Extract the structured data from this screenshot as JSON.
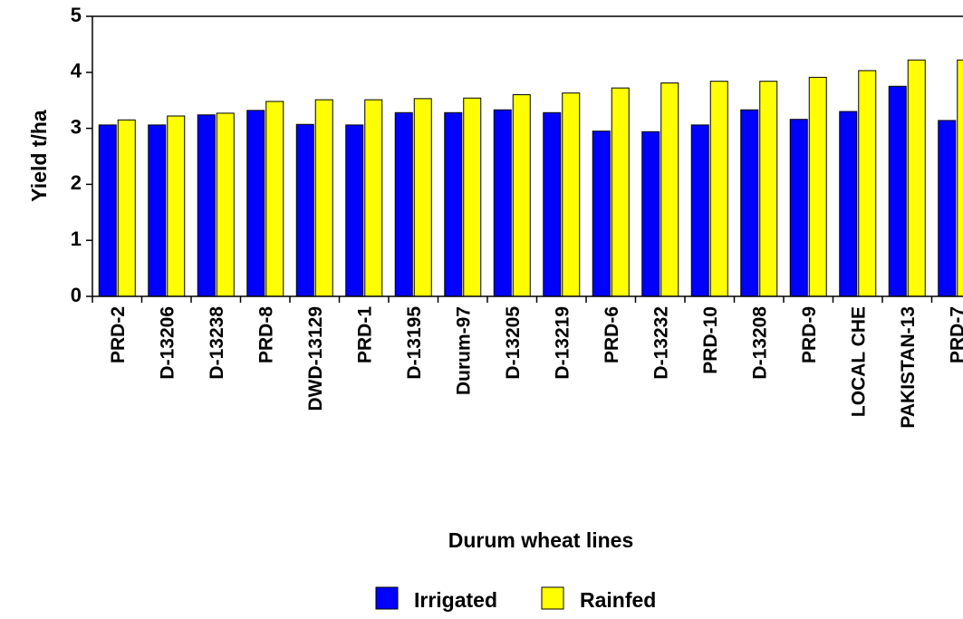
{
  "chart_data": {
    "type": "bar",
    "x_label": "Durum wheat lines",
    "y_label": "Yield t/ha",
    "categories": [
      "PRD-2",
      "D-13206",
      "D-13238",
      "PRD-8",
      "DWD-13129",
      "PRD-1",
      "D-13195",
      "Durum-97",
      "D-13205",
      "D-13219",
      "PRD-6",
      "D-13232",
      "PRD-10",
      "D-13208",
      "PRD-9",
      "LOCAL CHE",
      "PAKISTAN-13",
      "PRD-7"
    ],
    "series": [
      {
        "name": "Irrigated",
        "color": "#0000ff",
        "values": [
          3.06,
          3.06,
          3.24,
          3.32,
          3.07,
          3.06,
          3.28,
          3.28,
          3.33,
          3.28,
          2.95,
          2.94,
          3.06,
          3.33,
          3.16,
          3.3,
          3.75,
          3.14
        ]
      },
      {
        "name": "Rainfed",
        "color": "#ffff00",
        "values": [
          3.15,
          3.22,
          3.27,
          3.48,
          3.51,
          3.51,
          3.53,
          3.54,
          3.6,
          3.63,
          3.72,
          3.81,
          3.84,
          3.84,
          3.91,
          4.03,
          4.22,
          4.22
        ]
      }
    ],
    "ylim": [
      0,
      5
    ],
    "yticks": [
      0,
      1,
      2,
      3,
      4,
      5
    ],
    "legend": "bottom"
  }
}
